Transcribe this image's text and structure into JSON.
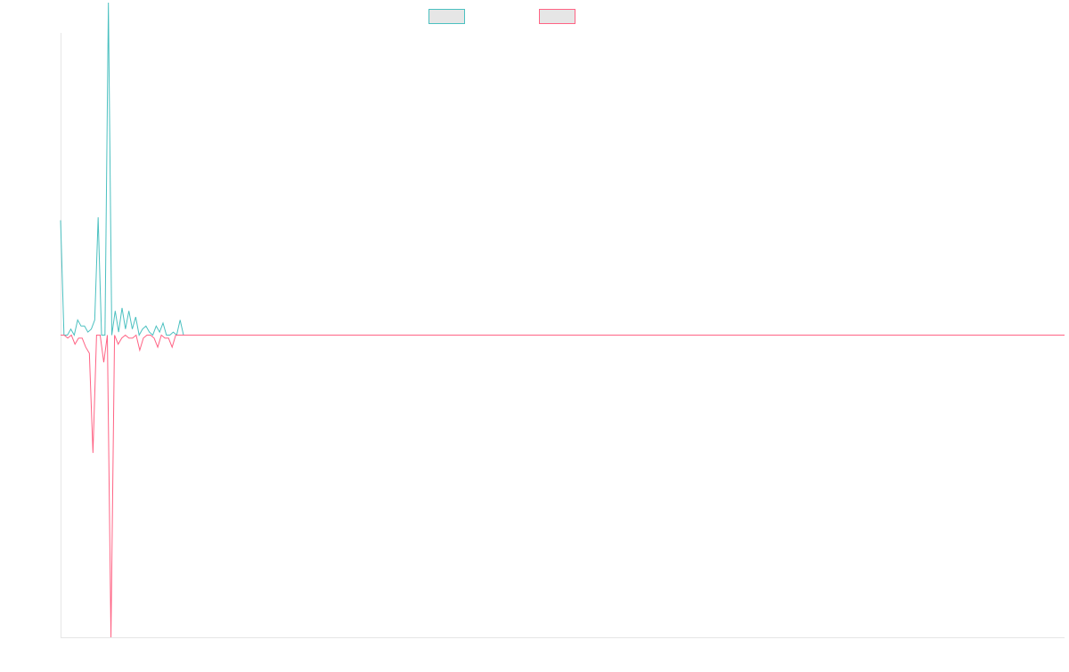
{
  "chart_data": {
    "type": "line",
    "title": "",
    "xlabel": "",
    "ylabel": "",
    "x_range": [
      0,
      290
    ],
    "ylim": [
      -100,
      100
    ],
    "grid": false,
    "legend_position": "top",
    "series": [
      {
        "legend_label": "",
        "color": "#4bc0c0",
        "values": [
          38,
          0,
          0,
          2,
          0,
          5,
          3,
          3,
          1,
          2,
          5,
          39,
          0,
          0,
          110,
          0,
          8,
          1,
          9,
          2,
          8,
          2,
          6,
          0,
          2,
          3,
          1,
          0,
          3,
          1,
          4,
          0,
          0,
          1,
          0,
          5,
          0,
          0,
          0,
          0,
          0,
          0,
          0,
          0,
          0,
          0,
          0,
          0,
          0,
          0,
          0,
          0,
          0,
          0,
          0,
          0,
          0,
          0,
          0,
          0,
          0,
          0,
          0,
          0,
          0,
          0,
          0,
          0,
          0,
          0,
          0,
          0,
          0,
          0,
          0,
          0,
          0,
          0,
          0,
          0,
          0,
          0,
          0,
          0,
          0,
          0,
          0,
          0,
          0,
          0,
          0,
          0,
          0,
          0,
          0,
          0,
          0,
          0,
          0,
          0,
          0,
          0,
          0,
          0,
          0,
          0,
          0,
          0,
          0,
          0,
          0,
          0,
          0,
          0,
          0,
          0,
          0,
          0,
          0,
          0,
          0,
          0,
          0,
          0,
          0,
          0,
          0,
          0,
          0,
          0,
          0,
          0,
          0,
          0,
          0,
          0,
          0,
          0,
          0,
          0,
          0,
          0,
          0,
          0,
          0,
          0,
          0,
          0,
          0,
          0,
          0,
          0,
          0,
          0,
          0,
          0,
          0,
          0,
          0,
          0,
          0,
          0,
          0,
          0,
          0,
          0,
          0,
          0,
          0,
          0,
          0,
          0,
          0,
          0,
          0,
          0,
          0,
          0,
          0,
          0,
          0,
          0,
          0,
          0,
          0,
          0,
          0,
          0,
          0,
          0,
          0,
          0,
          0,
          0,
          0,
          0,
          0,
          0,
          0,
          0,
          0,
          0,
          0,
          0,
          0,
          0,
          0,
          0,
          0,
          0,
          0,
          0,
          0,
          0,
          0,
          0,
          0,
          0,
          0,
          0,
          0,
          0,
          0,
          0,
          0,
          0,
          0,
          0,
          0,
          0,
          0,
          0,
          0,
          0,
          0,
          0,
          0,
          0,
          0,
          0,
          0,
          0,
          0,
          0,
          0,
          0,
          0,
          0,
          0,
          0,
          0,
          0,
          0,
          0,
          0,
          0,
          0,
          0,
          0,
          0,
          0,
          0,
          0,
          0,
          0,
          0,
          0,
          0,
          0,
          0,
          0,
          0,
          0,
          0,
          0,
          0,
          0,
          0,
          0,
          0,
          0,
          0,
          0,
          0,
          0,
          0,
          0,
          0,
          0,
          0,
          0,
          0,
          0,
          0,
          0
        ]
      },
      {
        "legend_label": "",
        "color": "#ff6384",
        "values": [
          0,
          0,
          -1,
          0,
          -3,
          -1,
          -1,
          -4,
          -6,
          -39,
          0,
          0,
          -9,
          0,
          -100,
          0,
          -3,
          -1,
          0,
          -1,
          -1,
          0,
          -5,
          -1,
          0,
          0,
          -1,
          -4,
          0,
          -1,
          -1,
          -4,
          0,
          0,
          0,
          0,
          0,
          0,
          0,
          0,
          0,
          0,
          0,
          0,
          0,
          0,
          0,
          0,
          0,
          0,
          0,
          0,
          0,
          0,
          0,
          0,
          0,
          0,
          0,
          0,
          0,
          0,
          0,
          0,
          0,
          0,
          0,
          0,
          0,
          0,
          0,
          0,
          0,
          0,
          0,
          0,
          0,
          0,
          0,
          0,
          0,
          0,
          0,
          0,
          0,
          0,
          0,
          0,
          0,
          0,
          0,
          0,
          0,
          0,
          0,
          0,
          0,
          0,
          0,
          0,
          0,
          0,
          0,
          0,
          0,
          0,
          0,
          0,
          0,
          0,
          0,
          0,
          0,
          0,
          0,
          0,
          0,
          0,
          0,
          0,
          0,
          0,
          0,
          0,
          0,
          0,
          0,
          0,
          0,
          0,
          0,
          0,
          0,
          0,
          0,
          0,
          0,
          0,
          0,
          0,
          0,
          0,
          0,
          0,
          0,
          0,
          0,
          0,
          0,
          0,
          0,
          0,
          0,
          0,
          0,
          0,
          0,
          0,
          0,
          0,
          0,
          0,
          0,
          0,
          0,
          0,
          0,
          0,
          0,
          0,
          0,
          0,
          0,
          0,
          0,
          0,
          0,
          0,
          0,
          0,
          0,
          0,
          0,
          0,
          0,
          0,
          0,
          0,
          0,
          0,
          0,
          0,
          0,
          0,
          0,
          0,
          0,
          0,
          0,
          0,
          0,
          0,
          0,
          0,
          0,
          0,
          0,
          0,
          0,
          0,
          0,
          0,
          0,
          0,
          0,
          0,
          0,
          0,
          0,
          0,
          0,
          0,
          0,
          0,
          0,
          0,
          0,
          0,
          0,
          0,
          0,
          0,
          0,
          0,
          0,
          0,
          0,
          0,
          0,
          0,
          0,
          0,
          0,
          0,
          0,
          0,
          0,
          0,
          0,
          0,
          0,
          0,
          0,
          0,
          0,
          0,
          0,
          0,
          0,
          0,
          0,
          0,
          0,
          0,
          0,
          0,
          0,
          0,
          0,
          0,
          0,
          0,
          0,
          0,
          0,
          0,
          0,
          0,
          0,
          0
        ]
      }
    ],
    "legend_swatch_fill": "#e6e6e6",
    "axis_color": "#e6e6e6"
  }
}
